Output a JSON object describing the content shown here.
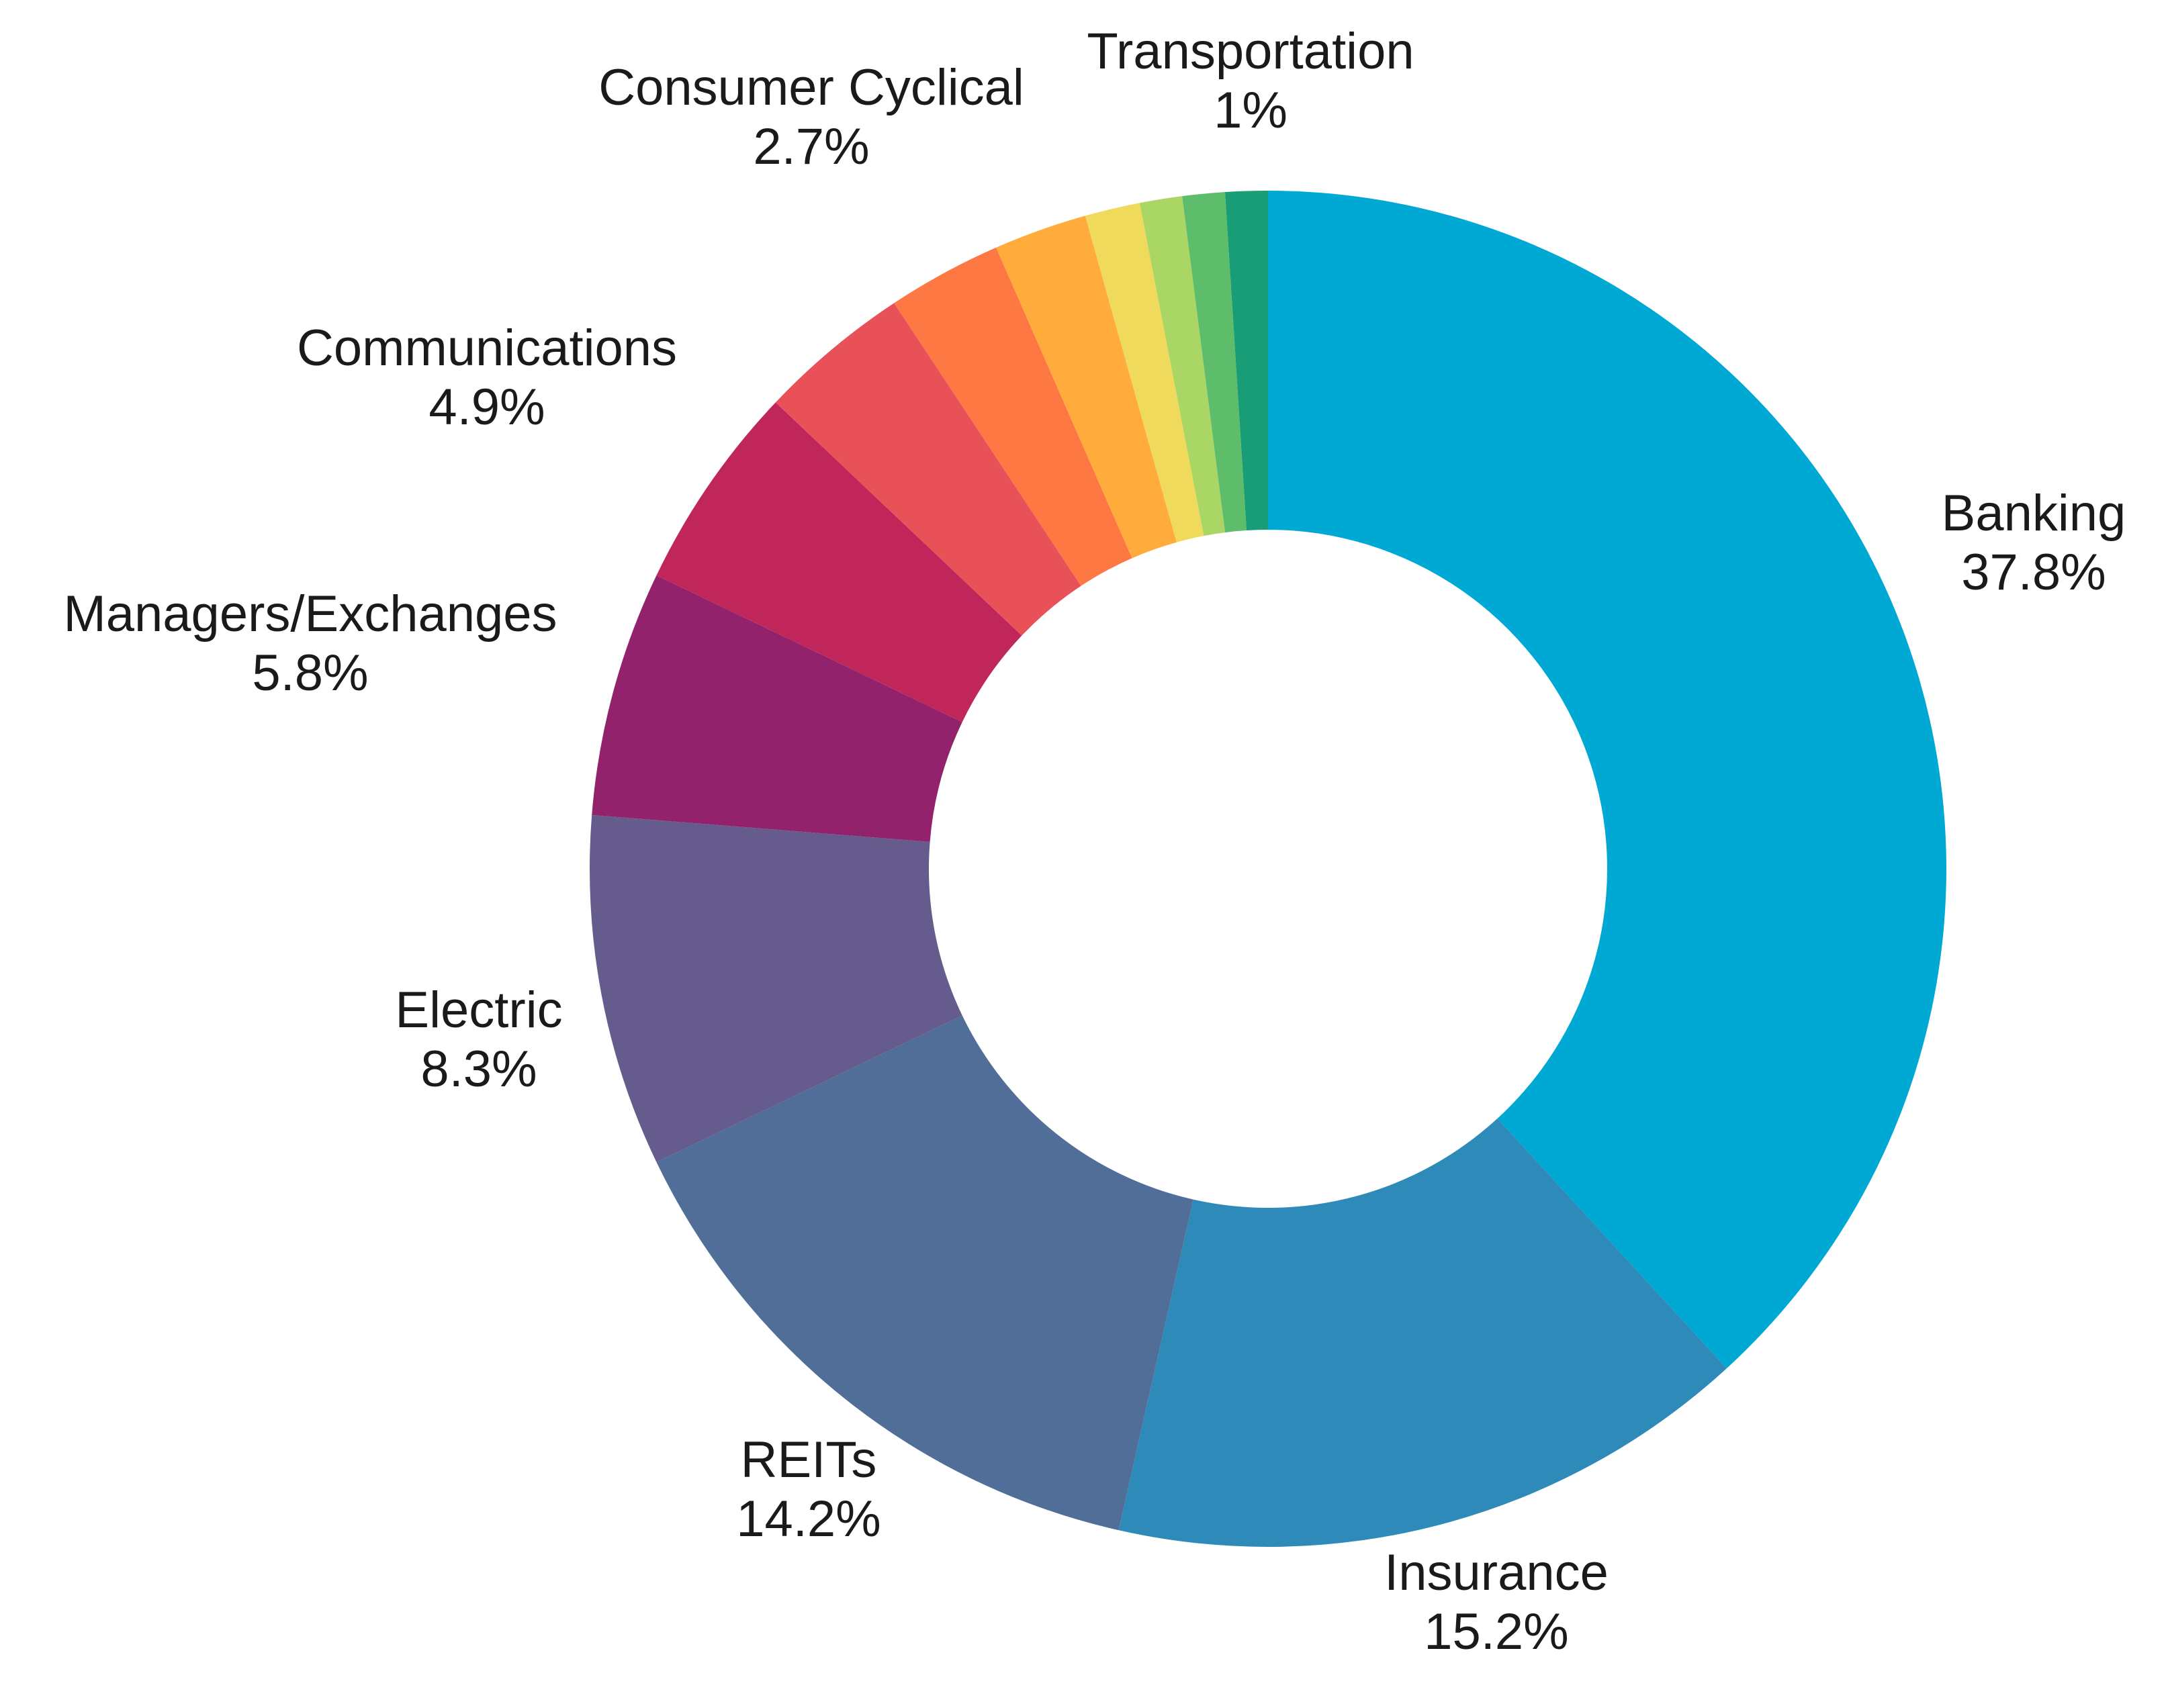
{
  "chart_data": {
    "type": "pie",
    "donut": true,
    "start": "top",
    "direction": "clockwise",
    "slices": [
      {
        "label": "Banking",
        "value": 37.8,
        "value_text": "37.8%",
        "color": "#00A9D4",
        "labeled": true
      },
      {
        "label": "Insurance",
        "value": 15.2,
        "value_text": "15.2%",
        "color": "#2E8AB8",
        "labeled": true
      },
      {
        "label": "REITs",
        "value": 14.2,
        "value_text": "14.2%",
        "color": "#506E98",
        "labeled": true
      },
      {
        "label": "Electric",
        "value": 8.3,
        "value_text": "8.3%",
        "color": "#655B8C",
        "labeled": true
      },
      {
        "label": "Managers/Exchanges",
        "value": 5.8,
        "value_text": "5.8%",
        "color": "#93226D",
        "labeled": true
      },
      {
        "label": "Communications",
        "value": 4.9,
        "value_text": "4.9%",
        "color": "#C0265A",
        "labeled": true
      },
      {
        "label": "",
        "value": 3.6,
        "value_text": "",
        "color": "#E95159",
        "labeled": false
      },
      {
        "label": "Consumer Cyclical",
        "value": 2.7,
        "value_text": "2.7%",
        "color": "#FE7844",
        "labeled": true
      },
      {
        "label": "",
        "value": 2.2,
        "value_text": "",
        "color": "#FFAC3C",
        "labeled": false
      },
      {
        "label": "",
        "value": 1.3,
        "value_text": "",
        "color": "#EFDA5C",
        "labeled": false
      },
      {
        "label": "",
        "value": 1.0,
        "value_text": "",
        "color": "#A9D664",
        "labeled": false
      },
      {
        "label": "",
        "value": 1.0,
        "value_text": "",
        "color": "#5EBD6B",
        "labeled": false
      },
      {
        "label": "Transportation",
        "value": 1.0,
        "value_text": "1%",
        "color": "#199D76",
        "labeled": true
      }
    ]
  }
}
